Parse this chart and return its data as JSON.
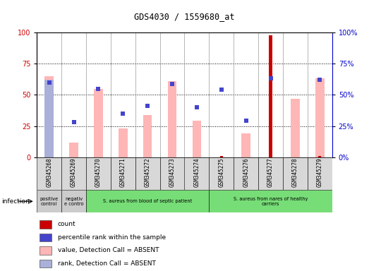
{
  "title": "GDS4030 / 1559680_at",
  "samples": [
    "GSM345268",
    "GSM345269",
    "GSM345270",
    "GSM345271",
    "GSM345272",
    "GSM345273",
    "GSM345274",
    "GSM345275",
    "GSM345276",
    "GSM345277",
    "GSM345278",
    "GSM345279"
  ],
  "count_values": [
    0,
    0,
    0,
    0,
    0,
    0,
    0,
    1,
    0,
    98,
    0,
    1
  ],
  "percentile_rank": [
    60,
    28,
    55,
    35,
    41,
    59,
    40,
    54,
    29,
    63,
    0,
    62
  ],
  "value_absent": [
    65,
    12,
    55,
    23,
    34,
    61,
    29,
    0,
    19,
    0,
    47,
    63
  ],
  "rank_absent": [
    62,
    0,
    0,
    0,
    0,
    0,
    0,
    0,
    0,
    0,
    0,
    0
  ],
  "groups": [
    {
      "label": "positive\ncontrol",
      "start": 0,
      "end": 1,
      "color": "#cccccc"
    },
    {
      "label": "negativ\ne contro",
      "start": 1,
      "end": 2,
      "color": "#cccccc"
    },
    {
      "label": "S. aureus from blood of septic patient",
      "start": 2,
      "end": 7,
      "color": "#77dd77"
    },
    {
      "label": "S. aureus from nares of healthy\ncarriers",
      "start": 7,
      "end": 12,
      "color": "#77dd77"
    }
  ],
  "infection_label": "infection",
  "ylim_left": [
    0,
    100
  ],
  "ylim_right": [
    0,
    100
  ],
  "yticks": [
    0,
    25,
    50,
    75,
    100
  ],
  "color_count": "#cc0000",
  "color_rank": "#4444cc",
  "color_value_absent": "#ffb6b6",
  "color_rank_absent": "#aab0d8",
  "legend_items": [
    {
      "label": "count",
      "color": "#cc0000"
    },
    {
      "label": "percentile rank within the sample",
      "color": "#4444cc"
    },
    {
      "label": "value, Detection Call = ABSENT",
      "color": "#ffb6b6"
    },
    {
      "label": "rank, Detection Call = ABSENT",
      "color": "#aab0d8"
    }
  ]
}
